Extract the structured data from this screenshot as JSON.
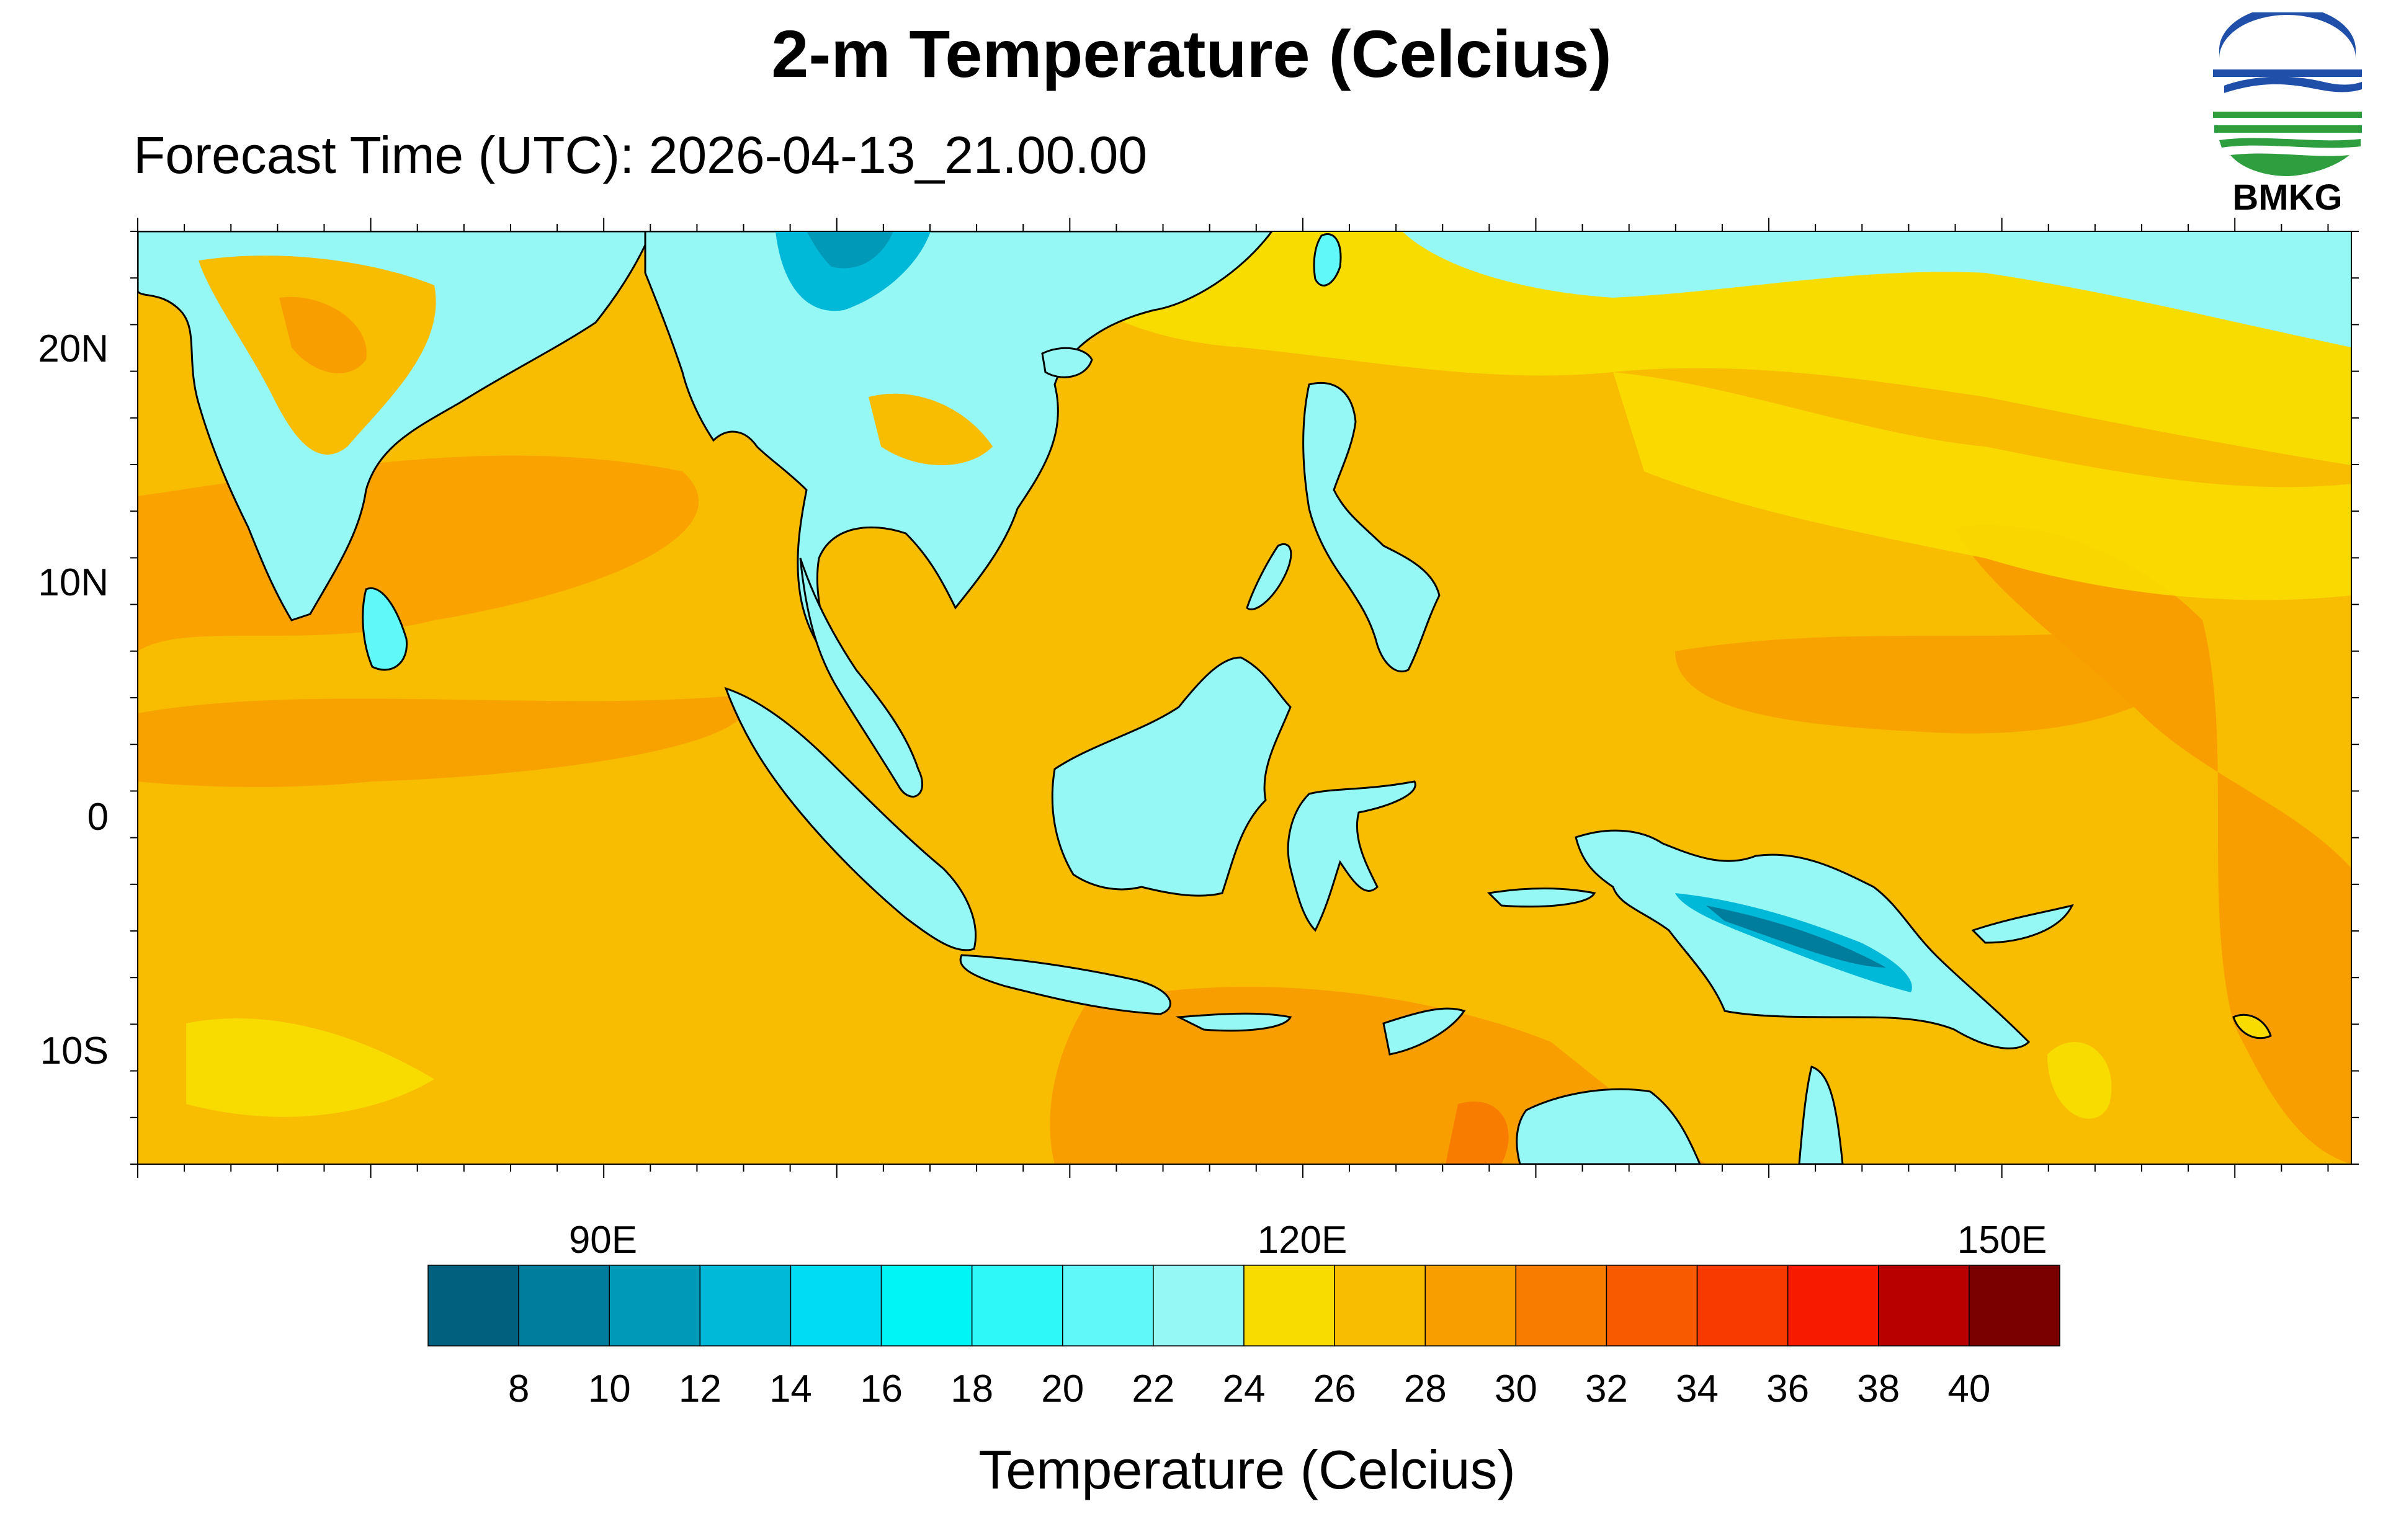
{
  "title": "2-m Temperature (Celcius)",
  "subtitle": "Forecast Time (UTC): 2026-04-13_21.00.00",
  "logo": {
    "text": "BMKG",
    "colors": [
      "#1f4fa8",
      "#2e9e3f"
    ]
  },
  "map": {
    "type": "filled-contour",
    "variable": "2-m temperature",
    "units": "Celcius",
    "lat_labels": [
      "20N",
      "10N",
      "0",
      "10S"
    ],
    "lon_labels": [
      "90E",
      "120E",
      "150E"
    ],
    "lon_range": [
      70,
      165
    ],
    "lat_range": [
      -15,
      25
    ]
  },
  "colorbar": {
    "title": "Temperature (Celcius)",
    "labels": [
      "8",
      "10",
      "12",
      "14",
      "16",
      "18",
      "20",
      "22",
      "24",
      "26",
      "28",
      "30",
      "32",
      "34",
      "36",
      "38",
      "40"
    ],
    "colors": [
      "#00607e",
      "#007c9c",
      "#0099b8",
      "#00b8d8",
      "#00dcf4",
      "#00f6f6",
      "#2ef8f8",
      "#60f8f8",
      "#96f8f4",
      "#f8dc00",
      "#f8bc00",
      "#f89e00",
      "#f87c00",
      "#f85a00",
      "#f83a00",
      "#f81a00",
      "#b80000",
      "#7a0000"
    ]
  }
}
